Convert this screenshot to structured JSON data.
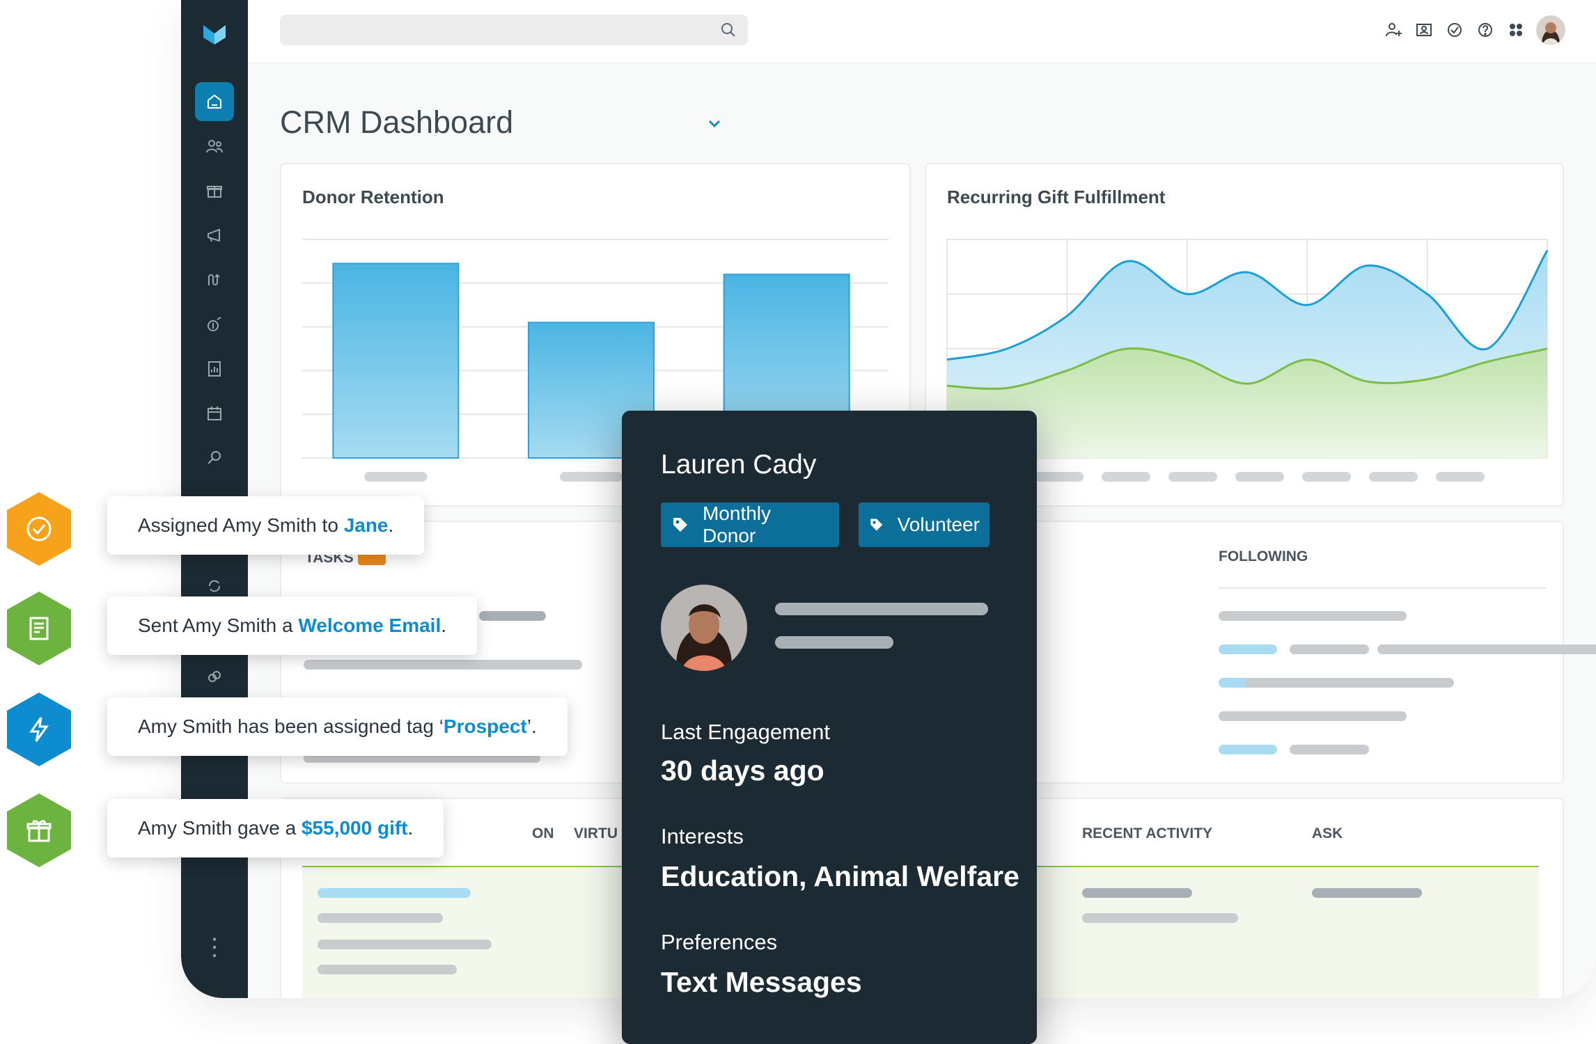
{
  "header": {
    "title": "CRM Dashboard"
  },
  "cards": {
    "donor_retention": {
      "title": "Donor Retention"
    },
    "recurring_gift": {
      "title": "Recurring Gift Fulfillment"
    },
    "tasks": {
      "label": "TASKS"
    },
    "following": {
      "label": "FOLLOWING"
    },
    "table": {
      "columns": [
        {
          "label": "ON"
        },
        {
          "label": "VIRTU"
        },
        {
          "label": "RECENT ACTIVITY"
        },
        {
          "label": "ASK"
        }
      ]
    }
  },
  "profile": {
    "name": "Lauren Cady",
    "tags": [
      "Monthly Donor",
      "Volunteer"
    ],
    "last_engagement_label": "Last Engagement",
    "last_engagement_value": "30 days ago",
    "interests_label": "Interests",
    "interests_value": "Education, Animal Welfare",
    "preferences_label": "Preferences",
    "preferences_value": "Text Messages"
  },
  "activity_feed": [
    {
      "icon": "check-circle-icon",
      "color": "#f7a21b",
      "prefix": "Assigned Amy Smith to ",
      "highlight": "Jane",
      "suffix": "."
    },
    {
      "icon": "document-icon",
      "color": "#6db33f",
      "prefix": "Sent Amy Smith a ",
      "highlight": "Welcome Email",
      "suffix": "."
    },
    {
      "icon": "lightning-icon",
      "color": "#0d8dd0",
      "prefix": "Amy Smith has been assigned tag ‘",
      "highlight": "Prospect",
      "suffix": "’."
    },
    {
      "icon": "gift-icon",
      "color": "#6db33f",
      "prefix": "Amy Smith gave a ",
      "highlight": "$55,000 gift",
      "suffix": "."
    }
  ],
  "chart_data": [
    {
      "type": "bar",
      "title": "Donor Retention",
      "categories": [
        "",
        "",
        ""
      ],
      "values": [
        0.89,
        0.62,
        0.84
      ],
      "ylim": [
        0,
        1
      ],
      "grid": true
    },
    {
      "type": "area",
      "title": "Recurring Gift Fulfillment",
      "x": [
        0,
        1,
        2,
        3,
        4,
        5,
        6,
        7,
        8,
        9,
        10
      ],
      "series": [
        {
          "values": [
            0.45,
            0.5,
            0.65,
            0.9,
            0.75,
            0.85,
            0.7,
            0.88,
            0.75,
            0.5,
            0.95
          ]
        },
        {
          "values": [
            0.33,
            0.32,
            0.4,
            0.5,
            0.45,
            0.34,
            0.45,
            0.35,
            0.36,
            0.44,
            0.5
          ]
        }
      ],
      "colors": [
        "#1a9fd8",
        "#7cbd45"
      ],
      "ylim": [
        0,
        1
      ],
      "grid": true
    }
  ]
}
